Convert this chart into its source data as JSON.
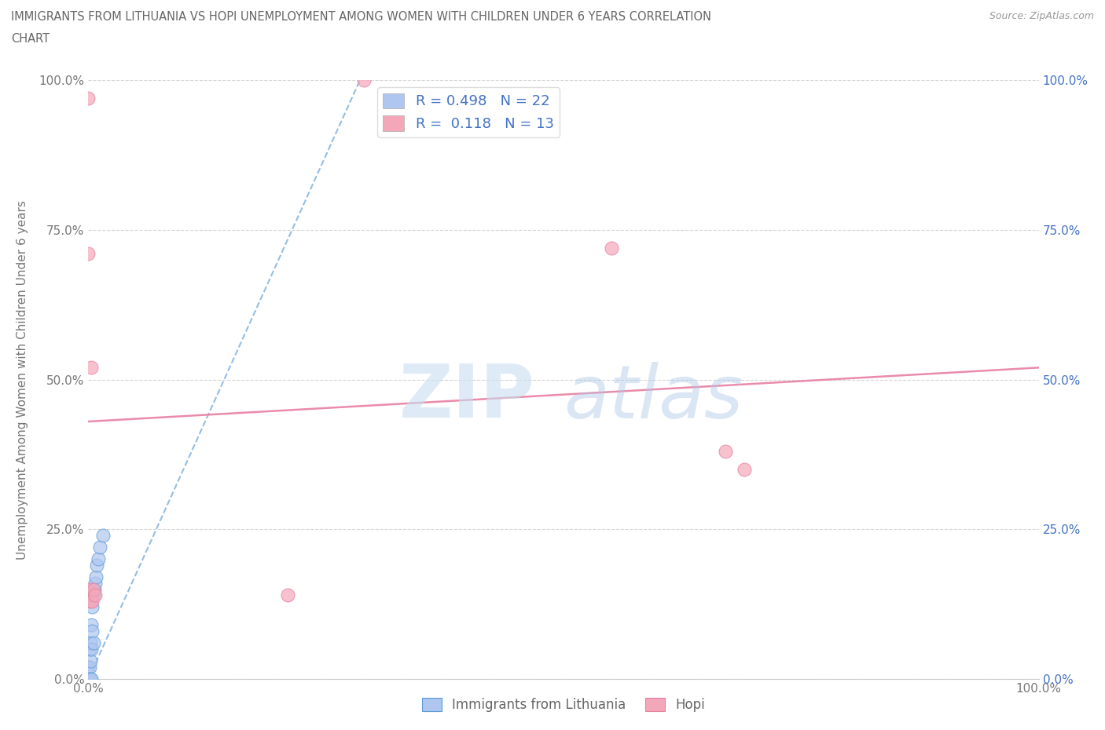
{
  "title_line1": "IMMIGRANTS FROM LITHUANIA VS HOPI UNEMPLOYMENT AMONG WOMEN WITH CHILDREN UNDER 6 YEARS CORRELATION",
  "title_line2": "CHART",
  "source": "Source: ZipAtlas.com",
  "ylabel": "Unemployment Among Women with Children Under 6 years",
  "yticks": [
    0.0,
    0.25,
    0.5,
    0.75,
    1.0
  ],
  "ytick_labels": [
    "0.0%",
    "25.0%",
    "50.0%",
    "75.0%",
    "100.0%"
  ],
  "legend_entries": [
    {
      "label": "R = 0.498   N = 22",
      "color": "#aec6f0"
    },
    {
      "label": "R =  0.118   N = 13",
      "color": "#f4a7b9"
    }
  ],
  "blue_scatter_x": [
    0.0,
    0.0,
    0.001,
    0.001,
    0.001,
    0.002,
    0.002,
    0.002,
    0.003,
    0.003,
    0.003,
    0.004,
    0.004,
    0.005,
    0.005,
    0.006,
    0.007,
    0.008,
    0.009,
    0.01,
    0.012,
    0.015
  ],
  "blue_scatter_y": [
    0.0,
    0.02,
    0.0,
    0.02,
    0.05,
    0.0,
    0.03,
    0.06,
    0.0,
    0.05,
    0.09,
    0.08,
    0.12,
    0.06,
    0.14,
    0.15,
    0.16,
    0.17,
    0.19,
    0.2,
    0.22,
    0.24
  ],
  "pink_scatter_x": [
    0.0,
    0.0,
    0.0,
    0.002,
    0.003,
    0.004,
    0.005,
    0.007,
    0.21,
    0.29,
    0.55,
    0.67,
    0.69
  ],
  "pink_scatter_y": [
    0.97,
    0.71,
    0.15,
    0.13,
    0.52,
    0.13,
    0.15,
    0.14,
    0.14,
    1.0,
    0.72,
    0.38,
    0.35
  ],
  "blue_line_x": [
    0.0,
    0.3
  ],
  "blue_line_y": [
    0.0,
    1.05
  ],
  "pink_line_x": [
    0.0,
    1.0
  ],
  "pink_line_y": [
    0.43,
    0.52
  ],
  "blue_color": "#5b9bd5",
  "blue_scatter_color": "#aec6f0",
  "pink_color": "#e87fa0",
  "pink_scatter_color": "#f4a7b9",
  "watermark_zip": "ZIP",
  "watermark_atlas": "atlas",
  "background_color": "#ffffff",
  "xlim": [
    0.0,
    1.0
  ],
  "ylim": [
    0.0,
    1.0
  ]
}
